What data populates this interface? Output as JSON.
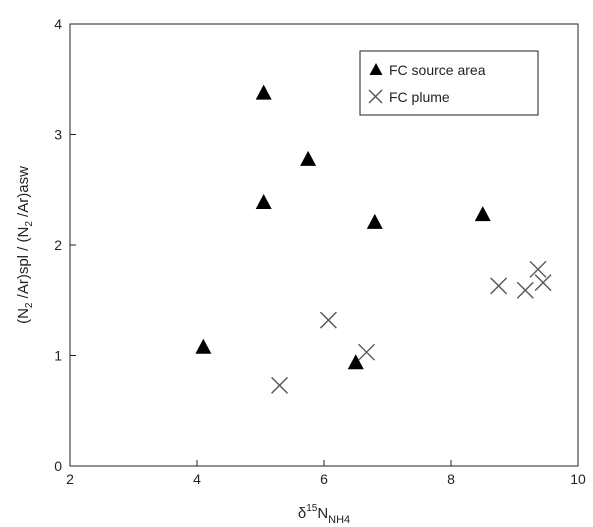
{
  "chart_data": {
    "type": "scatter",
    "xlim": [
      2,
      10
    ],
    "ylim": [
      0,
      4
    ],
    "xticks": [
      "2",
      "4",
      "6",
      "8",
      "10"
    ],
    "yticks": [
      "0",
      "1",
      "2",
      "3",
      "4"
    ],
    "xlabel": {
      "prefix": "δ",
      "sup": "15",
      "main": "N",
      "sub": "NH4"
    },
    "ylabel": {
      "p1": "(N",
      "s1": "2",
      "p2": " /Ar)spl / (N",
      "s2": "2",
      "p3": " /Ar)asw"
    },
    "grid": false,
    "legend_position": "top-right",
    "series": [
      {
        "name": "FC source area",
        "marker": "triangle",
        "color": "#000000",
        "points": [
          {
            "x": 4.1,
            "y": 1.07
          },
          {
            "x": 5.05,
            "y": 3.37
          },
          {
            "x": 5.05,
            "y": 2.38
          },
          {
            "x": 5.75,
            "y": 2.77
          },
          {
            "x": 6.8,
            "y": 2.2
          },
          {
            "x": 6.5,
            "y": 0.93
          },
          {
            "x": 8.5,
            "y": 2.27
          }
        ]
      },
      {
        "name": "FC plume",
        "marker": "x",
        "color": "#555555",
        "points": [
          {
            "x": 5.3,
            "y": 0.73
          },
          {
            "x": 6.07,
            "y": 1.32
          },
          {
            "x": 6.67,
            "y": 1.03
          },
          {
            "x": 8.75,
            "y": 1.63
          },
          {
            "x": 9.17,
            "y": 1.59
          },
          {
            "x": 9.37,
            "y": 1.78
          },
          {
            "x": 9.45,
            "y": 1.66
          }
        ]
      }
    ]
  }
}
